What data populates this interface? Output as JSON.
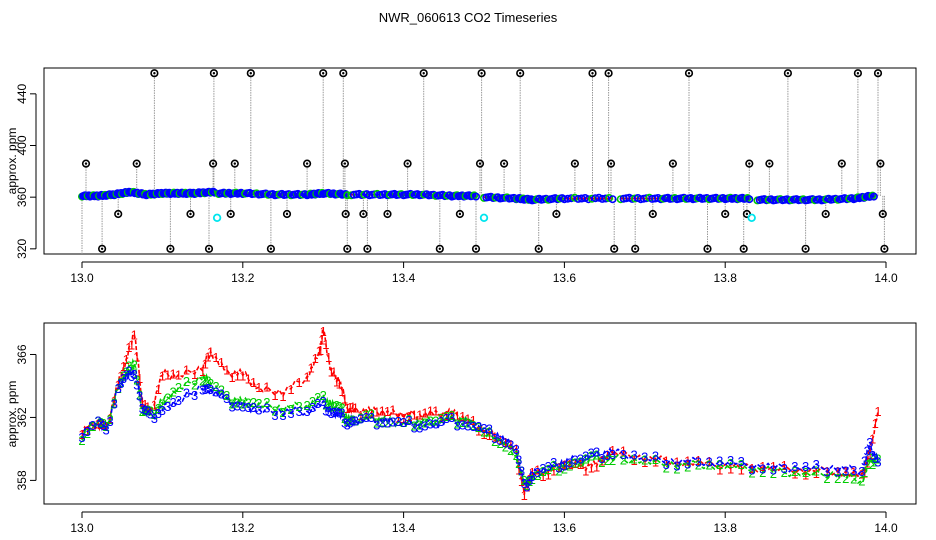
{
  "title": "NWR_060613  CO2 Timeseries",
  "chart_data": [
    {
      "type": "scatter",
      "ylabel": "approx. ppm",
      "xlim": [
        13.0,
        14.0
      ],
      "ylim": [
        316,
        460
      ],
      "x_ticks": [
        "13.0",
        "13.2",
        "13.4",
        "13.6",
        "13.8",
        "14.0"
      ],
      "y_ticks": [
        "320",
        "360",
        "400",
        "440"
      ],
      "baseline_segments": [
        {
          "x": [
            13.0,
            13.02,
            13.04,
            13.06,
            13.08,
            13.1,
            13.12,
            13.14,
            13.165
          ],
          "y": [
            361,
            361,
            362,
            364,
            362,
            363,
            363,
            363,
            364
          ]
        },
        {
          "x": [
            13.17,
            13.2,
            13.24,
            13.28,
            13.3,
            13.33
          ],
          "y": [
            363,
            363,
            362,
            362,
            363,
            362
          ]
        },
        {
          "x": [
            13.335,
            13.38,
            13.42,
            13.46,
            13.49
          ],
          "y": [
            362,
            362,
            362,
            361,
            361
          ]
        },
        {
          "x": [
            13.5,
            13.54,
            13.56,
            13.6,
            13.66
          ],
          "y": [
            360,
            359,
            358,
            359,
            359
          ]
        },
        {
          "x": [
            13.67,
            13.72,
            13.76,
            13.8,
            13.83
          ],
          "y": [
            359,
            359,
            359,
            359,
            359
          ]
        },
        {
          "x": [
            13.84,
            13.88,
            13.92,
            13.96,
            13.985
          ],
          "y": [
            358,
            358,
            358,
            359,
            361
          ]
        }
      ],
      "spike_points": [
        {
          "x": 13.005,
          "y": 386
        },
        {
          "x": 13.025,
          "y": 320
        },
        {
          "x": 13.045,
          "y": 347
        },
        {
          "x": 13.068,
          "y": 386
        },
        {
          "x": 13.09,
          "y": 456
        },
        {
          "x": 13.11,
          "y": 320
        },
        {
          "x": 13.135,
          "y": 347
        },
        {
          "x": 13.158,
          "y": 320
        },
        {
          "x": 13.163,
          "y": 386
        },
        {
          "x": 13.164,
          "y": 456
        },
        {
          "x": 13.185,
          "y": 347
        },
        {
          "x": 13.19,
          "y": 386
        },
        {
          "x": 13.21,
          "y": 456
        },
        {
          "x": 13.235,
          "y": 320
        },
        {
          "x": 13.255,
          "y": 347
        },
        {
          "x": 13.28,
          "y": 386
        },
        {
          "x": 13.3,
          "y": 456
        },
        {
          "x": 13.325,
          "y": 456
        },
        {
          "x": 13.327,
          "y": 386
        },
        {
          "x": 13.328,
          "y": 347
        },
        {
          "x": 13.33,
          "y": 320
        },
        {
          "x": 13.35,
          "y": 347
        },
        {
          "x": 13.355,
          "y": 320
        },
        {
          "x": 13.38,
          "y": 347
        },
        {
          "x": 13.405,
          "y": 386
        },
        {
          "x": 13.425,
          "y": 456
        },
        {
          "x": 13.445,
          "y": 320
        },
        {
          "x": 13.47,
          "y": 347
        },
        {
          "x": 13.49,
          "y": 320
        },
        {
          "x": 13.495,
          "y": 386
        },
        {
          "x": 13.497,
          "y": 456
        },
        {
          "x": 13.525,
          "y": 386
        },
        {
          "x": 13.545,
          "y": 456
        },
        {
          "x": 13.568,
          "y": 320
        },
        {
          "x": 13.59,
          "y": 347
        },
        {
          "x": 13.613,
          "y": 386
        },
        {
          "x": 13.635,
          "y": 456
        },
        {
          "x": 13.655,
          "y": 456
        },
        {
          "x": 13.658,
          "y": 386
        },
        {
          "x": 13.662,
          "y": 320
        },
        {
          "x": 13.688,
          "y": 320
        },
        {
          "x": 13.71,
          "y": 347
        },
        {
          "x": 13.735,
          "y": 386
        },
        {
          "x": 13.755,
          "y": 456
        },
        {
          "x": 13.778,
          "y": 320
        },
        {
          "x": 13.8,
          "y": 347
        },
        {
          "x": 13.823,
          "y": 320
        },
        {
          "x": 13.827,
          "y": 347
        },
        {
          "x": 13.83,
          "y": 386
        },
        {
          "x": 13.855,
          "y": 386
        },
        {
          "x": 13.878,
          "y": 456
        },
        {
          "x": 13.9,
          "y": 320
        },
        {
          "x": 13.925,
          "y": 347
        },
        {
          "x": 13.945,
          "y": 386
        },
        {
          "x": 13.965,
          "y": 456
        },
        {
          "x": 13.99,
          "y": 456
        },
        {
          "x": 13.993,
          "y": 386
        },
        {
          "x": 13.996,
          "y": 347
        },
        {
          "x": 13.998,
          "y": 320
        }
      ],
      "cyan_points": [
        {
          "x": 13.168,
          "y": 344
        },
        {
          "x": 13.5,
          "y": 344
        },
        {
          "x": 13.833,
          "y": 344
        }
      ],
      "colors": {
        "series_1": "#ff0000",
        "series_2": "#00cc00",
        "series_3": "#0000ff",
        "spike": "#000000",
        "spike_line": "#999999",
        "cyan": "#00e5ee"
      }
    },
    {
      "type": "line",
      "ylabel": "approx. ppm",
      "xlim": [
        13.0,
        14.0
      ],
      "ylim": [
        356.5,
        368
      ],
      "x_ticks": [
        "13.0",
        "13.2",
        "13.4",
        "13.6",
        "13.8",
        "14.0"
      ],
      "y_ticks": [
        "358",
        "362",
        "366"
      ],
      "series": [
        {
          "name": "1",
          "color": "#ff0000",
          "x": [
            13.0,
            13.02,
            13.03,
            13.045,
            13.055,
            13.065,
            13.075,
            13.085,
            13.1,
            13.12,
            13.15,
            13.16,
            13.18,
            13.2,
            13.22,
            13.25,
            13.28,
            13.295,
            13.3,
            13.31,
            13.32,
            13.33,
            13.34,
            13.36,
            13.38,
            13.4,
            13.42,
            13.44,
            13.46,
            13.48,
            13.5,
            13.52,
            13.54,
            13.55,
            13.56,
            13.58,
            13.6,
            13.62,
            13.64,
            13.66,
            13.7,
            13.74,
            13.78,
            13.82,
            13.86,
            13.9,
            13.94,
            13.97,
            13.98,
            13.99
          ],
          "y": [
            361.2,
            361.6,
            361.2,
            364.2,
            365.6,
            367.5,
            363.0,
            362.2,
            364.8,
            364.6,
            365.2,
            366.2,
            364.8,
            364.8,
            363.8,
            363.6,
            364.6,
            366.0,
            367.6,
            364.8,
            364.4,
            362.6,
            362.4,
            362.4,
            362.3,
            362.2,
            362.2,
            362.2,
            362.3,
            361.8,
            361.2,
            360.6,
            359.8,
            357.2,
            358.4,
            358.6,
            359.0,
            358.8,
            359.0,
            359.8,
            359.4,
            359.2,
            359.0,
            358.8,
            358.8,
            358.6,
            358.6,
            358.2,
            359.8,
            362.4
          ]
        },
        {
          "name": "2",
          "color": "#00cc00",
          "x": [
            13.0,
            13.02,
            13.03,
            13.045,
            13.055,
            13.065,
            13.075,
            13.085,
            13.1,
            13.12,
            13.15,
            13.16,
            13.18,
            13.2,
            13.22,
            13.25,
            13.28,
            13.3,
            13.31,
            13.32,
            13.33,
            13.34,
            13.36,
            13.38,
            13.4,
            13.42,
            13.44,
            13.46,
            13.48,
            13.5,
            13.52,
            13.54,
            13.55,
            13.56,
            13.58,
            13.6,
            13.62,
            13.64,
            13.66,
            13.7,
            13.74,
            13.78,
            13.82,
            13.86,
            13.9,
            13.94,
            13.97,
            13.98,
            13.99
          ],
          "y": [
            360.8,
            361.8,
            361.2,
            364.0,
            364.8,
            365.6,
            362.4,
            362.2,
            363.0,
            363.8,
            364.6,
            364.2,
            363.2,
            363.0,
            362.8,
            362.6,
            362.8,
            363.2,
            362.8,
            362.6,
            362.0,
            361.8,
            362.0,
            361.8,
            361.6,
            361.8,
            361.8,
            361.9,
            361.8,
            361.0,
            360.6,
            359.6,
            357.8,
            358.2,
            358.6,
            359.0,
            359.2,
            359.4,
            359.4,
            359.2,
            359.0,
            359.0,
            358.8,
            358.6,
            358.4,
            358.4,
            358.0,
            359.2,
            359.4
          ]
        },
        {
          "name": "3",
          "color": "#0000ff",
          "x": [
            13.0,
            13.02,
            13.03,
            13.045,
            13.055,
            13.065,
            13.075,
            13.085,
            13.1,
            13.12,
            13.15,
            13.16,
            13.18,
            13.2,
            13.22,
            13.25,
            13.28,
            13.3,
            13.31,
            13.32,
            13.33,
            13.34,
            13.36,
            13.38,
            13.4,
            13.42,
            13.44,
            13.46,
            13.48,
            13.5,
            13.52,
            13.54,
            13.55,
            13.56,
            13.58,
            13.6,
            13.62,
            13.64,
            13.66,
            13.7,
            13.74,
            13.78,
            13.82,
            13.86,
            13.9,
            13.94,
            13.97,
            13.98,
            13.99
          ],
          "y": [
            361.0,
            361.8,
            361.0,
            364.0,
            364.6,
            365.0,
            362.6,
            362.0,
            362.6,
            363.0,
            364.0,
            363.8,
            363.0,
            362.8,
            362.4,
            362.4,
            362.4,
            362.8,
            362.4,
            362.2,
            361.8,
            361.8,
            361.8,
            361.8,
            361.6,
            361.6,
            361.6,
            361.8,
            361.6,
            361.2,
            360.8,
            360.0,
            357.6,
            358.4,
            358.8,
            359.2,
            359.4,
            359.6,
            359.8,
            359.4,
            359.2,
            359.2,
            359.0,
            358.8,
            358.8,
            358.8,
            358.6,
            360.2,
            359.2
          ]
        }
      ]
    }
  ]
}
